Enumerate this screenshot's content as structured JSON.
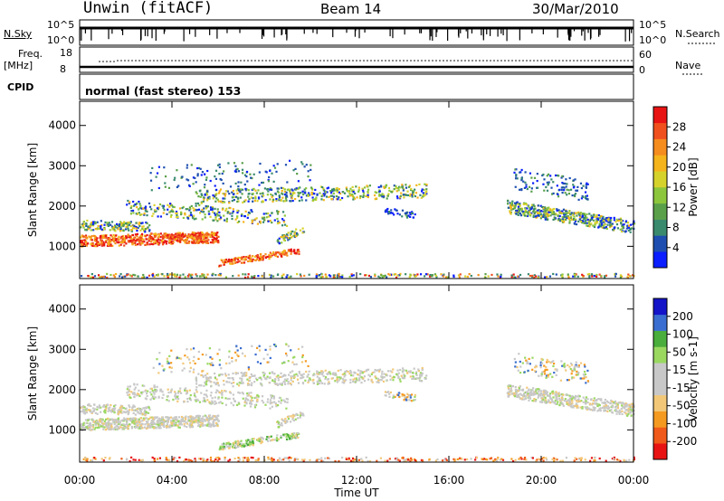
{
  "header": {
    "station": "Unwin (fitACF)",
    "beam": "Beam 14",
    "date": "30/Mar/2010"
  },
  "strips": {
    "nsky_label": "N.Sky",
    "nsky_ticks_left": [
      "10^5",
      "10^0"
    ],
    "nsky_ticks_right": [
      "10^5",
      "10^0"
    ],
    "nsearch_label": "N.Search",
    "freq_label": "Freq.",
    "freq_unit": "[MHz]",
    "freq_ticks": [
      "18",
      "8"
    ],
    "nave_ticks": [
      "60",
      "0"
    ],
    "nave_label": "Nave",
    "cpid_label": "CPID",
    "cpid_text": "normal (fast stereo) 153"
  },
  "colors": {
    "power_scale": [
      "#0a1eff",
      "#1e4fb0",
      "#3a8a6e",
      "#5aa04a",
      "#8cc63c",
      "#d6d22c",
      "#f5b41c",
      "#f58c1e",
      "#f0501e",
      "#e81414"
    ],
    "velocity_scale": [
      "#e81414",
      "#f05a1a",
      "#f59a20",
      "#f2c878",
      "#c8c8c8",
      "#c8c8c8",
      "#9ad860",
      "#4aae3c",
      "#3a6ed0",
      "#1414c8"
    ]
  },
  "chart_data": [
    {
      "type": "heatmap",
      "panel": "power",
      "x_ticks": [
        "00:00",
        "04:00",
        "08:00",
        "12:00",
        "16:00",
        "20:00",
        "00:00"
      ],
      "y_ticks": [
        "1000",
        "2000",
        "3000",
        "4000"
      ],
      "ylabel": "Slant Range [km]",
      "ylim": [
        200,
        4600
      ],
      "colorbar_label": "Power [dB]",
      "colorbar_ticks": [
        "4",
        "8",
        "12",
        "16",
        "20",
        "24",
        "28"
      ],
      "colorbar_range": [
        0,
        32
      ]
    },
    {
      "type": "heatmap",
      "panel": "velocity",
      "x_ticks": [
        "00:00",
        "04:00",
        "08:00",
        "12:00",
        "16:00",
        "20:00",
        "00:00"
      ],
      "y_ticks": [
        "1000",
        "2000",
        "3000",
        "4000"
      ],
      "ylabel": "Slant Range [km]",
      "xlabel": "Time UT",
      "ylim": [
        200,
        4600
      ],
      "colorbar_label": "Velocity [m s-1]",
      "colorbar_ticks": [
        "200",
        "100",
        "50",
        "15",
        "-15",
        "-50",
        "-100",
        "-200"
      ],
      "colorbar_range": [
        -250,
        250
      ]
    }
  ]
}
